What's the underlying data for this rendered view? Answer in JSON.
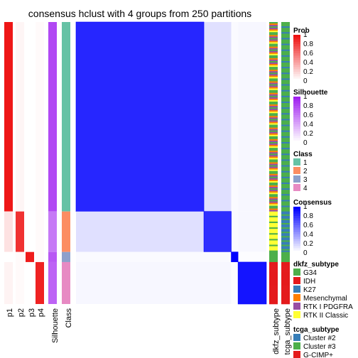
{
  "chart_data": {
    "type": "heatmap",
    "title": "consensus hclust with 4 groups from 250 partitions",
    "colors": {
      "prob_high": "#ee1111",
      "prob_low": "#ffffff",
      "silhouette_high": "#a020f0",
      "silhouette_low": "#ffffff",
      "consensus_high": "#0000ff",
      "consensus_low": "#ffffff",
      "class": {
        "1": "#66c2a5",
        "2": "#fc8d62",
        "3": "#8da0cb",
        "4": "#e78ac3"
      },
      "dkfz": {
        "G34": "#4daf4a",
        "IDH": "#e41a1c",
        "K27": "#377eb8",
        "Mesenchymal": "#ff7f00",
        "RTK I PDGFRA": "#984ea3",
        "RTK II Classic": "#ffff33"
      },
      "tcga": {
        "Cluster #2": "#377eb8",
        "Cluster #3": "#4daf4a",
        "G-CIMP+": "#e41a1c"
      }
    },
    "column_labels": [
      "p1",
      "p2",
      "p3",
      "p4",
      "Silhouette",
      "Class",
      "dkfz_subtype",
      "tcga_subtype"
    ],
    "groups": [
      {
        "class": "1",
        "size": 131,
        "p": [
          0.98,
          0.04,
          0.0,
          0.02
        ],
        "silhouette": 0.82,
        "consensus_within": 0.85
      },
      {
        "class": "2",
        "size": 28,
        "p": [
          0.12,
          0.86,
          0.0,
          0.02
        ],
        "silhouette": 0.6,
        "consensus_within": 0.82
      },
      {
        "class": "3",
        "size": 7,
        "p": [
          0.0,
          0.02,
          0.96,
          0.02
        ],
        "silhouette": 0.75,
        "consensus_within": 1.0
      },
      {
        "class": "4",
        "size": 29,
        "p": [
          0.05,
          0.02,
          0.0,
          0.93
        ],
        "silhouette": 0.7,
        "consensus_within": 0.92
      }
    ],
    "between_consensus": [
      [
        1.0,
        0.12,
        0.02,
        0.03
      ],
      [
        0.12,
        1.0,
        0.02,
        0.03
      ],
      [
        0.02,
        0.02,
        1.0,
        0.01
      ],
      [
        0.03,
        0.03,
        0.01,
        1.0
      ]
    ],
    "legends": [
      {
        "title": "Prob",
        "type": "continuous",
        "ticks": [
          "1",
          "0.8",
          "0.6",
          "0.4",
          "0.2",
          "0"
        ]
      },
      {
        "title": "Silhouette",
        "type": "continuous",
        "ticks": [
          "1",
          "0.8",
          "0.6",
          "0.4",
          "0.2",
          "0"
        ]
      },
      {
        "title": "Class",
        "type": "discrete",
        "items": [
          "1",
          "2",
          "3",
          "4"
        ]
      },
      {
        "title": "Consensus",
        "type": "continuous",
        "ticks": [
          "1",
          "0.8",
          "0.6",
          "0.4",
          "0.2",
          "0"
        ]
      },
      {
        "title": "dkfz_subtype",
        "type": "discrete",
        "items": [
          "G34",
          "IDH",
          "K27",
          "Mesenchymal",
          "RTK I PDGFRA",
          "RTK II Classic"
        ]
      },
      {
        "title": "tcga_subtype",
        "type": "discrete",
        "items": [
          "Cluster #2",
          "Cluster #3",
          "G-CIMP+"
        ]
      }
    ],
    "legend_position": "right",
    "grid": false
  }
}
